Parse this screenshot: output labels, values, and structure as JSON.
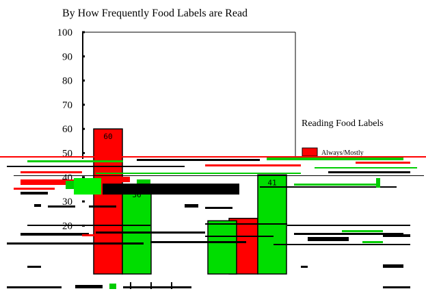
{
  "chart_data": {
    "type": "bar",
    "title": "By How Frequently Food Labels are Read",
    "y_ticks": [
      "100",
      "90",
      "80",
      "70",
      "60",
      "50",
      "40",
      "30",
      "20"
    ],
    "ylim": [
      0,
      100
    ],
    "categories": [
      "",
      "",
      ""
    ],
    "series": [
      {
        "values": [
          60,
          0,
          23
        ],
        "color": "#ff0000"
      },
      {
        "values": [
          36,
          22,
          41
        ],
        "color": "#00dd00"
      }
    ],
    "data_labels": [
      {
        "series": 0,
        "index": 0,
        "text": "60"
      },
      {
        "series": 1,
        "index": 0,
        "text": "36"
      },
      {
        "series": 1,
        "index": 2,
        "text": "41"
      }
    ],
    "legend": {
      "title": "Reading Food Labels",
      "entries": [
        {
          "label": "Always/Mostly",
          "color": "#ff0000"
        }
      ],
      "placement": "right"
    }
  }
}
